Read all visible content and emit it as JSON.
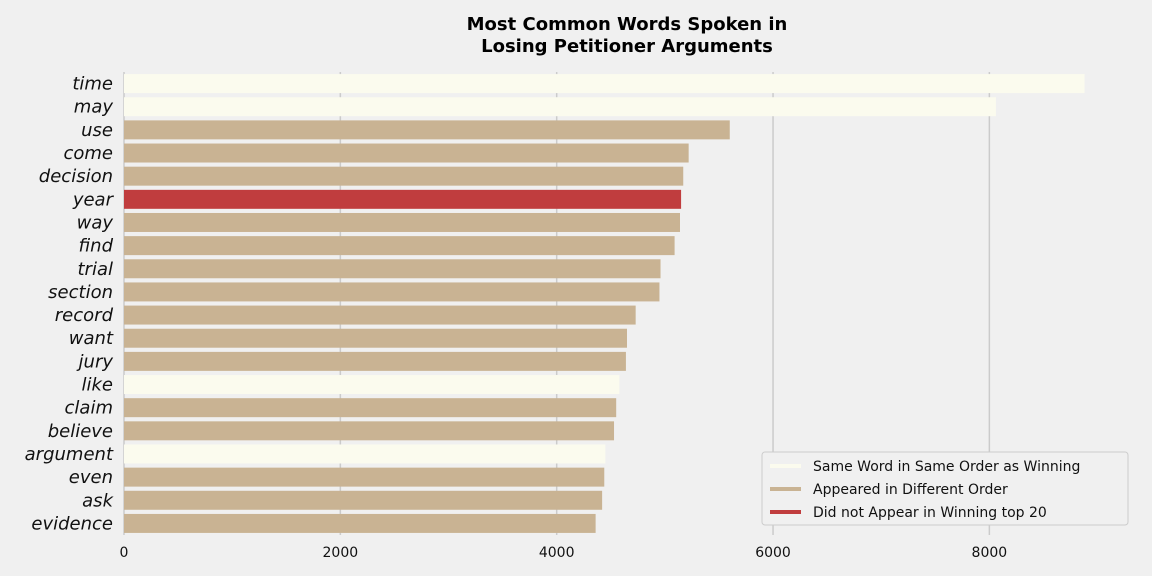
{
  "chart_data": {
    "type": "bar",
    "orientation": "horizontal",
    "title": "Most Common Words Spoken in\nLosing Petitioner Arguments",
    "xlabel": "",
    "ylabel": "",
    "xlim": [
      0,
      9300
    ],
    "xticks": [
      0,
      2000,
      4000,
      6000,
      8000
    ],
    "grid": true,
    "legend_position": "bottom-right",
    "categories": [
      "time",
      "may",
      "use",
      "come",
      "decision",
      "year",
      "way",
      "find",
      "trial",
      "section",
      "record",
      "want",
      "jury",
      "like",
      "claim",
      "believe",
      "argument",
      "even",
      "ask",
      "evidence"
    ],
    "values": [
      8880,
      8060,
      5600,
      5220,
      5170,
      5150,
      5140,
      5090,
      4960,
      4950,
      4730,
      4650,
      4640,
      4580,
      4550,
      4530,
      4450,
      4440,
      4420,
      4360
    ],
    "groups": [
      "same",
      "same",
      "different",
      "different",
      "different",
      "missing",
      "different",
      "different",
      "different",
      "different",
      "different",
      "different",
      "different",
      "same",
      "different",
      "different",
      "same",
      "different",
      "different",
      "different"
    ],
    "legend": [
      {
        "key": "same",
        "label": "Same Word in Same Order as Winning",
        "color": "#fbfbee"
      },
      {
        "key": "different",
        "label": "Appeared in Different Order",
        "color": "#c9b393"
      },
      {
        "key": "missing",
        "label": "Did not Appear in Winning top 20",
        "color": "#c03d3e"
      }
    ]
  }
}
